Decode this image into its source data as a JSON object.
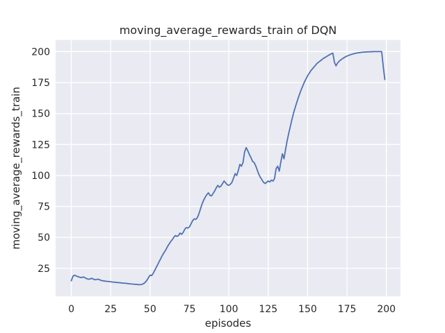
{
  "figure": {
    "title": "moving_average_rewards_train of DQN",
    "xlabel": "episodes",
    "ylabel": "moving_average_rewards_train"
  },
  "chart_data": {
    "type": "line",
    "title": "moving_average_rewards_train of DQN",
    "xlabel": "episodes",
    "ylabel": "moving_average_rewards_train",
    "x_start": 0,
    "x_step": 1,
    "series": [
      {
        "name": "moving_average_rewards_train",
        "color": "#4C72B0",
        "values": [
          15.0,
          18.6,
          19.5,
          19.0,
          18.4,
          18.0,
          17.6,
          17.8,
          18.0,
          17.2,
          16.6,
          16.2,
          16.5,
          17.0,
          16.4,
          15.8,
          16.0,
          16.3,
          15.8,
          15.2,
          15.0,
          14.8,
          14.6,
          14.5,
          14.4,
          14.2,
          14.0,
          13.9,
          13.8,
          13.6,
          13.5,
          13.4,
          13.2,
          13.1,
          13.0,
          12.9,
          12.7,
          12.6,
          12.4,
          12.3,
          12.2,
          12.1,
          12.0,
          11.8,
          11.9,
          12.2,
          12.8,
          13.8,
          15.5,
          17.5,
          19.5,
          19.2,
          21.0,
          23.5,
          26.0,
          28.5,
          31.0,
          33.5,
          36.0,
          38.0,
          40.0,
          42.5,
          44.5,
          46.5,
          48.0,
          50.0,
          51.5,
          50.8,
          51.5,
          53.5,
          52.5,
          54.0,
          56.5,
          58.0,
          57.5,
          58.5,
          61.0,
          63.5,
          65.0,
          64.5,
          66.0,
          69.0,
          73.0,
          77.0,
          80.0,
          82.5,
          84.5,
          86.0,
          84.0,
          83.5,
          85.5,
          87.5,
          90.0,
          92.0,
          90.5,
          91.5,
          93.5,
          95.5,
          94.0,
          92.5,
          92.0,
          93.0,
          94.5,
          98.0,
          101.5,
          100.0,
          104.0,
          109.0,
          107.5,
          110.5,
          119.0,
          122.5,
          120.0,
          117.0,
          114.5,
          111.5,
          110.5,
          108.0,
          104.5,
          101.0,
          98.5,
          96.5,
          94.5,
          93.5,
          94.5,
          95.5,
          94.8,
          96.2,
          95.5,
          97.5,
          105.5,
          107.5,
          103.5,
          111.0,
          117.5,
          113.5,
          121.0,
          128.0,
          134.0,
          139.5,
          145.0,
          150.0,
          154.5,
          158.5,
          162.5,
          166.0,
          169.5,
          172.5,
          175.5,
          178.0,
          180.5,
          182.5,
          184.5,
          186.0,
          187.5,
          189.0,
          190.5,
          191.5,
          192.5,
          193.5,
          194.5,
          195.2,
          196.0,
          196.8,
          197.5,
          198.2,
          198.8,
          191.5,
          188.5,
          190.8,
          192.2,
          193.3,
          194.2,
          195.0,
          195.8,
          196.4,
          196.9,
          197.4,
          197.8,
          198.2,
          198.5,
          198.8,
          199.0,
          199.2,
          199.4,
          199.5,
          199.6,
          199.7,
          199.8,
          199.8,
          199.9,
          199.9,
          200.0,
          200.0,
          200.0,
          200.0,
          200.0,
          200.0,
          188.0,
          177.5
        ]
      }
    ],
    "xlim": [
      -9.95,
      208.95
    ],
    "ylim": [
      2.4,
      209.4
    ],
    "xticks": [
      0,
      25,
      50,
      75,
      100,
      125,
      150,
      175,
      200
    ],
    "yticks": [
      25,
      50,
      75,
      100,
      125,
      150,
      175,
      200
    ],
    "grid": true,
    "legend": false,
    "style": {
      "figure_bg": "#FFFFFF",
      "axes_bg": "#EAEAF2",
      "grid_color": "#FFFFFF",
      "text_color": "#262626",
      "line_width": 1.8
    }
  }
}
